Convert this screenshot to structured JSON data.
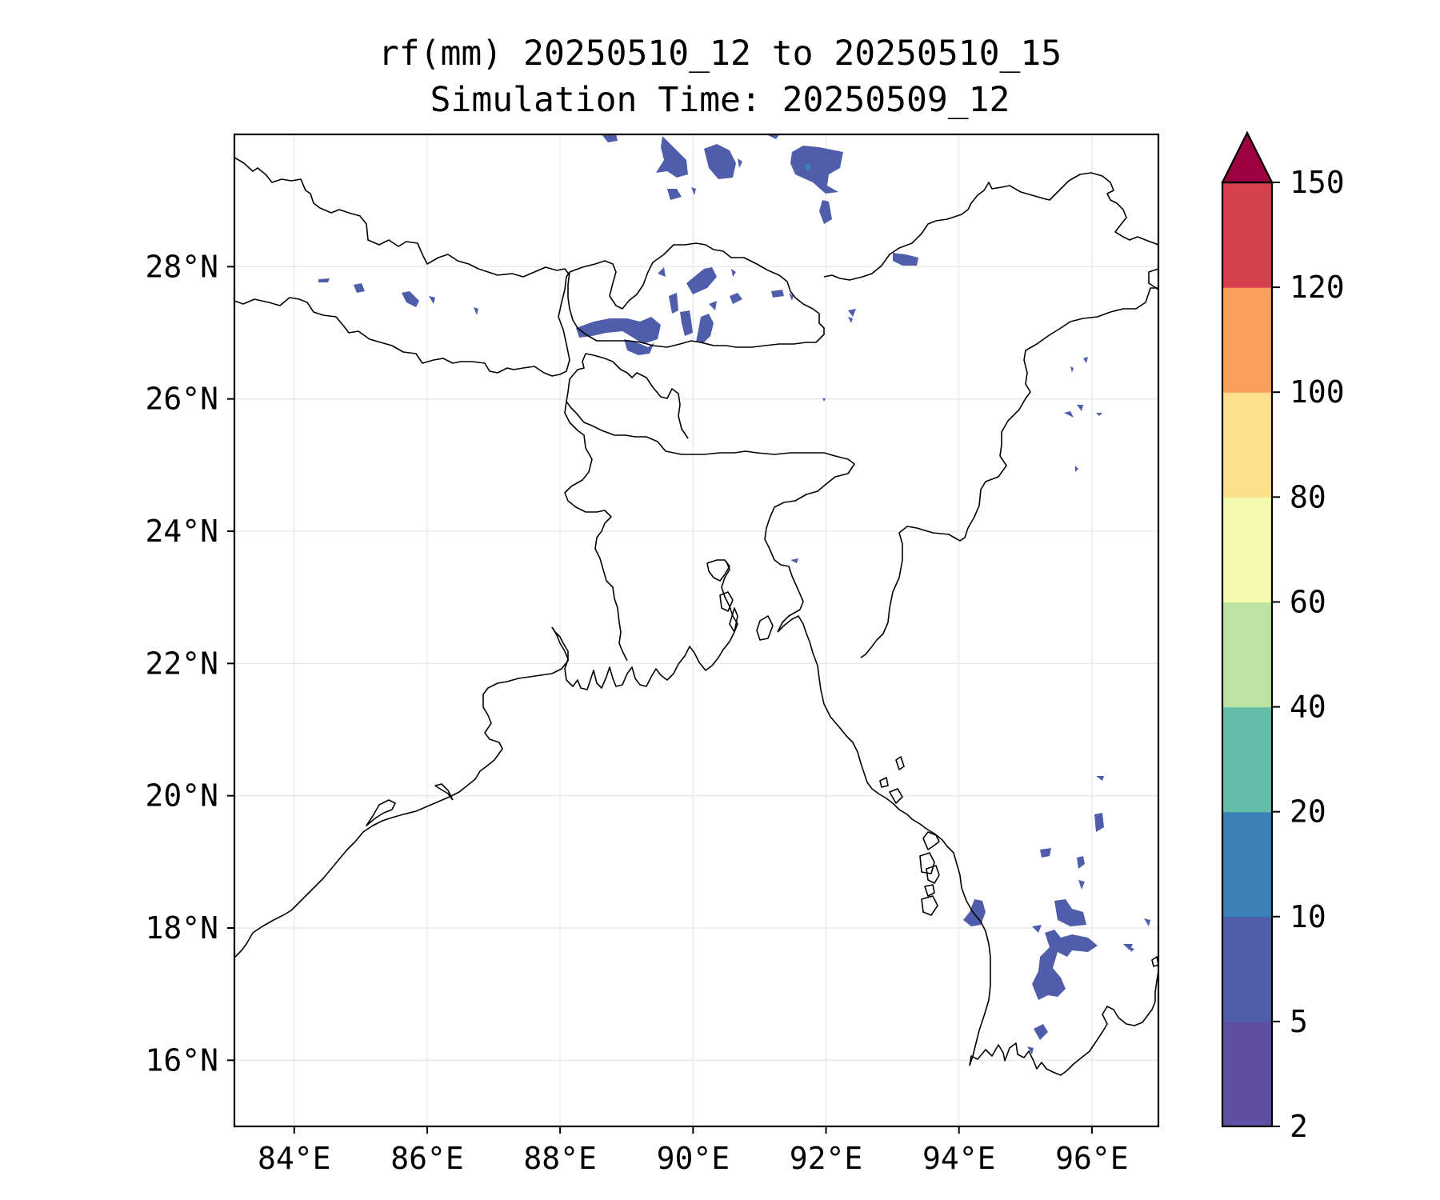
{
  "title": {
    "line1": "rf(mm) 20250510_12 to 20250510_15",
    "line2": "Simulation Time: 20250509_12"
  },
  "map": {
    "lon_range": [
      83.1,
      97.0
    ],
    "lat_range": [
      15.0,
      30.0
    ],
    "lon_ticks": [
      {
        "value": 84,
        "label": "84°E"
      },
      {
        "value": 86,
        "label": "86°E"
      },
      {
        "value": 88,
        "label": "88°E"
      },
      {
        "value": 90,
        "label": "90°E"
      },
      {
        "value": 92,
        "label": "92°E"
      },
      {
        "value": 94,
        "label": "94°E"
      },
      {
        "value": 96,
        "label": "96°E"
      }
    ],
    "lat_ticks": [
      {
        "value": 16,
        "label": "16°N"
      },
      {
        "value": 18,
        "label": "18°N"
      },
      {
        "value": 20,
        "label": "20°N"
      },
      {
        "value": 22,
        "label": "22°N"
      },
      {
        "value": 24,
        "label": "24°N"
      },
      {
        "value": 26,
        "label": "26°N"
      },
      {
        "value": 28,
        "label": "28°N"
      }
    ],
    "gridlines": true,
    "rain_color": "#4f5daa",
    "core_color": "#3a80b9"
  },
  "colorbar": {
    "levels": [
      {
        "label": "2",
        "color": "#5e4fa2"
      },
      {
        "label": "5",
        "color": "#4f5daa"
      },
      {
        "label": "10",
        "color": "#3a80b9"
      },
      {
        "label": "20",
        "color": "#64bda9"
      },
      {
        "label": "40",
        "color": "#bce4a0"
      },
      {
        "label": "60",
        "color": "#f4faad"
      },
      {
        "label": "80",
        "color": "#fde08b"
      },
      {
        "label": "100",
        "color": "#fba05c"
      },
      {
        "label": "120",
        "color": "#d6404e"
      },
      {
        "label": "150",
        "color": "#9e0142"
      }
    ],
    "extend": "max"
  }
}
